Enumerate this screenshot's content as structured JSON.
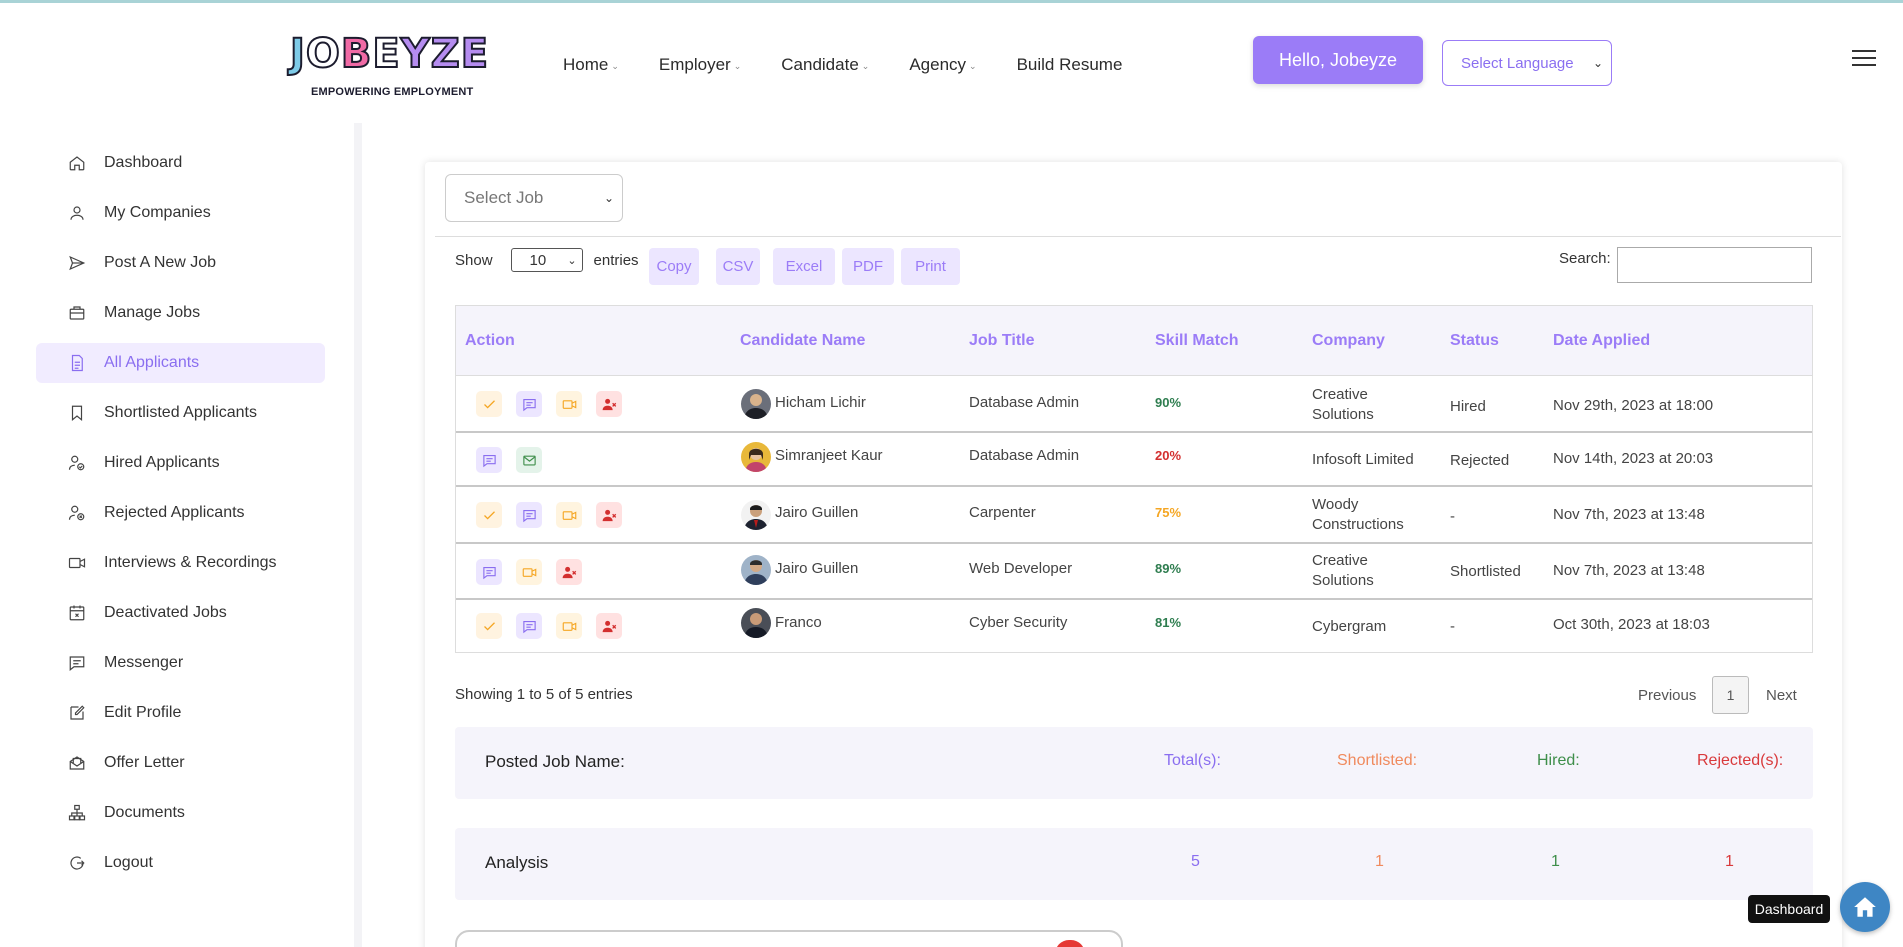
{
  "brand": {
    "logo_letters": [
      "J",
      "O",
      "B",
      "E",
      "YZE"
    ],
    "tagline": "EMPOWERING EMPLOYMENT"
  },
  "nav": {
    "items": [
      {
        "label": "Home",
        "dropdown": true
      },
      {
        "label": "Employer",
        "dropdown": true
      },
      {
        "label": "Candidate",
        "dropdown": true
      },
      {
        "label": "Agency",
        "dropdown": true
      },
      {
        "label": "Build Resume",
        "dropdown": false
      }
    ],
    "hello": "Hello, Jobeyze",
    "language": "Select Language"
  },
  "sidebar": {
    "items": [
      {
        "label": "Dashboard",
        "icon": "home-icon"
      },
      {
        "label": "My Companies",
        "icon": "user-icon"
      },
      {
        "label": "Post A New Job",
        "icon": "send-icon"
      },
      {
        "label": "Manage Jobs",
        "icon": "briefcase-icon"
      },
      {
        "label": "All Applicants",
        "icon": "document-icon",
        "active": true
      },
      {
        "label": "Shortlisted Applicants",
        "icon": "bookmark-icon"
      },
      {
        "label": "Hired Applicants",
        "icon": "user-check-icon"
      },
      {
        "label": "Rejected Applicants",
        "icon": "user-x-icon"
      },
      {
        "label": "Interviews & Recordings",
        "icon": "video-icon"
      },
      {
        "label": "Deactivated Jobs",
        "icon": "calendar-x-icon"
      },
      {
        "label": "Messenger",
        "icon": "message-icon"
      },
      {
        "label": "Edit Profile",
        "icon": "edit-icon"
      },
      {
        "label": "Offer Letter",
        "icon": "mail-open-icon"
      },
      {
        "label": "Documents",
        "icon": "sitemap-icon"
      },
      {
        "label": "Logout",
        "icon": "logout-icon"
      }
    ]
  },
  "toolbar": {
    "select_job": "Select Job",
    "show_label": "Show",
    "entries_value": "10",
    "entries_label": "entries",
    "buttons": [
      "Copy",
      "CSV",
      "Excel",
      "PDF",
      "Print"
    ],
    "search_label": "Search:",
    "search_value": ""
  },
  "table": {
    "headers": [
      "Action",
      "Candidate Name",
      "Job Title",
      "Skill Match",
      "Company",
      "Status",
      "Date Applied"
    ],
    "rows": [
      {
        "actions": [
          "check",
          "chat",
          "video",
          "reject"
        ],
        "name": "Hicham Lichir",
        "job": "Database Admin",
        "skill": "90%",
        "skill_color": "#2e7d4f",
        "company": [
          "Creative",
          "Solutions"
        ],
        "status": "Hired",
        "date": "Nov 29th, 2023 at 18:00"
      },
      {
        "actions": [
          "chat",
          "mail"
        ],
        "name": "Simranjeet Kaur",
        "job": "Database Admin",
        "skill": "20%",
        "skill_color": "#d32f2f",
        "company": [
          "Infosoft Limited"
        ],
        "status": "Rejected",
        "date": "Nov 14th, 2023 at 20:03"
      },
      {
        "actions": [
          "check",
          "chat",
          "video",
          "reject"
        ],
        "name": "Jairo Guillen",
        "job": "Carpenter",
        "skill": "75%",
        "skill_color": "#f5a623",
        "company": [
          "Woody",
          "Constructions"
        ],
        "status": "-",
        "date": "Nov 7th, 2023 at 13:48"
      },
      {
        "actions": [
          "chat",
          "video",
          "reject"
        ],
        "name": "Jairo Guillen",
        "job": "Web Developer",
        "skill": "89%",
        "skill_color": "#2e7d4f",
        "company": [
          "Creative",
          "Solutions"
        ],
        "status": "Shortlisted",
        "date": "Nov 7th, 2023 at 13:48"
      },
      {
        "actions": [
          "check",
          "chat",
          "video",
          "reject"
        ],
        "name": "Franco",
        "job": "Cyber Security",
        "skill": "81%",
        "skill_color": "#2e7d4f",
        "company": [
          "Cybergram"
        ],
        "status": "-",
        "date": "Oct 30th, 2023 at 18:03"
      }
    ],
    "info": "Showing 1 to 5 of 5 entries",
    "prev": "Previous",
    "page": "1",
    "next": "Next"
  },
  "summary": {
    "posted_label": "Posted Job Name:",
    "total_label": "Total(s):",
    "short_label": "Shortlisted:",
    "hired_label": "Hired:",
    "rejected_label": "Rejected(s):",
    "analysis_label": "Analysis",
    "total": "5",
    "shortlisted": "1",
    "hired": "1",
    "rejected": "1"
  },
  "fab": {
    "tooltip": "Dashboard"
  }
}
